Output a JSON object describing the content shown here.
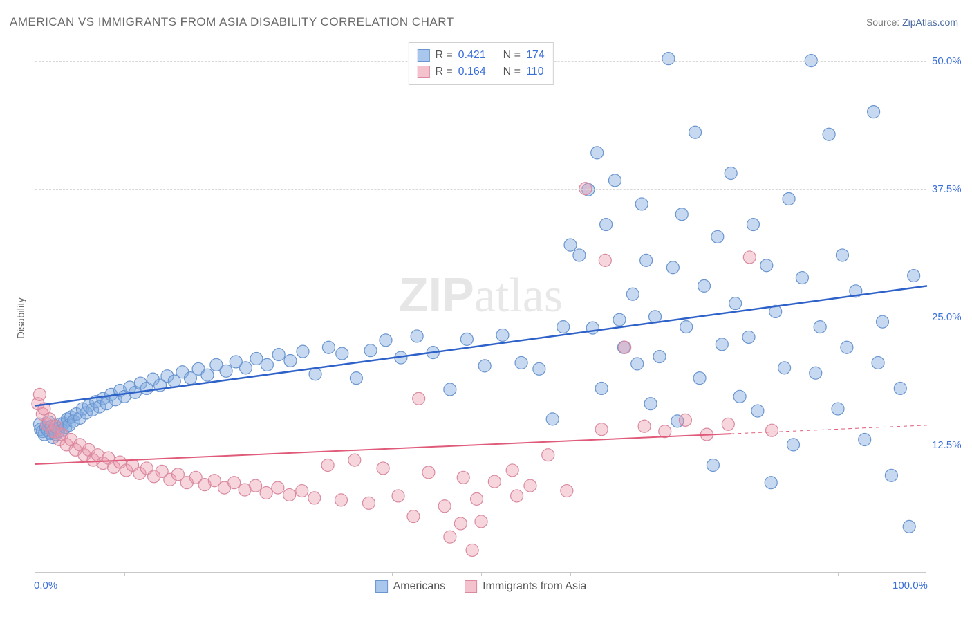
{
  "title": "AMERICAN VS IMMIGRANTS FROM ASIA DISABILITY CORRELATION CHART",
  "source_prefix": "Source: ",
  "source_name": "ZipAtlas.com",
  "ylabel": "Disability",
  "watermark_a": "ZIP",
  "watermark_b": "atlas",
  "chart": {
    "type": "scatter",
    "xlim": [
      0,
      100
    ],
    "ylim": [
      0,
      52
    ],
    "x_tick_labels": {
      "0": "0.0%",
      "100": "100.0%"
    },
    "x_minor_ticks": [
      10,
      20,
      30,
      40,
      50,
      60,
      70,
      80,
      90
    ],
    "y_gridlines": [
      12.5,
      25.0,
      37.5,
      50.0
    ],
    "y_tick_labels": {
      "12.5": "12.5%",
      "25.0": "25.0%",
      "37.5": "37.5%",
      "50.0": "50.0%"
    },
    "background_color": "#ffffff",
    "grid_color": "#d8d8d8",
    "axis_color": "#c8c8c8",
    "series": [
      {
        "name": "Americans",
        "label": "Americans",
        "color_fill": "rgba(128,170,225,0.45)",
        "color_stroke": "#6a95cf",
        "swatch_fill": "#a9c6ec",
        "swatch_stroke": "#6a95cf",
        "marker_radius": 9,
        "R": "0.421",
        "N": "174",
        "trend": {
          "x1": 0,
          "y1": 16.3,
          "x2": 100,
          "y2": 28.0,
          "color": "#2e62c9",
          "width": 2.5,
          "dash_from_x": null
        },
        "points": [
          [
            0.5,
            14.5
          ],
          [
            0.6,
            14.0
          ],
          [
            0.8,
            13.8
          ],
          [
            1.0,
            13.5
          ],
          [
            1.2,
            14.2
          ],
          [
            1.4,
            13.9
          ],
          [
            1.5,
            14.7
          ],
          [
            1.7,
            13.6
          ],
          [
            1.8,
            14.3
          ],
          [
            2.0,
            13.2
          ],
          [
            2.1,
            14.0
          ],
          [
            2.2,
            13.7
          ],
          [
            2.3,
            13.5
          ],
          [
            2.5,
            14.1
          ],
          [
            2.6,
            13.8
          ],
          [
            2.8,
            14.5
          ],
          [
            3.0,
            13.9
          ],
          [
            3.2,
            14.6
          ],
          [
            3.4,
            14.2
          ],
          [
            3.6,
            15.0
          ],
          [
            3.8,
            14.4
          ],
          [
            4.0,
            15.2
          ],
          [
            4.3,
            14.8
          ],
          [
            4.6,
            15.5
          ],
          [
            5.0,
            15.1
          ],
          [
            5.3,
            16.0
          ],
          [
            5.7,
            15.6
          ],
          [
            6.0,
            16.3
          ],
          [
            6.4,
            15.9
          ],
          [
            6.8,
            16.7
          ],
          [
            7.2,
            16.2
          ],
          [
            7.6,
            17.0
          ],
          [
            8.0,
            16.5
          ],
          [
            8.5,
            17.4
          ],
          [
            9.0,
            16.9
          ],
          [
            9.5,
            17.8
          ],
          [
            10.0,
            17.2
          ],
          [
            10.6,
            18.1
          ],
          [
            11.2,
            17.6
          ],
          [
            11.8,
            18.5
          ],
          [
            12.5,
            18.0
          ],
          [
            13.2,
            18.9
          ],
          [
            14.0,
            18.3
          ],
          [
            14.8,
            19.2
          ],
          [
            15.6,
            18.7
          ],
          [
            16.5,
            19.6
          ],
          [
            17.4,
            19.0
          ],
          [
            18.3,
            19.9
          ],
          [
            19.3,
            19.3
          ],
          [
            20.3,
            20.3
          ],
          [
            21.4,
            19.7
          ],
          [
            22.5,
            20.6
          ],
          [
            23.6,
            20.0
          ],
          [
            24.8,
            20.9
          ],
          [
            26.0,
            20.3
          ],
          [
            27.3,
            21.3
          ],
          [
            28.6,
            20.7
          ],
          [
            30.0,
            21.6
          ],
          [
            31.4,
            19.4
          ],
          [
            32.9,
            22.0
          ],
          [
            34.4,
            21.4
          ],
          [
            36.0,
            19.0
          ],
          [
            37.6,
            21.7
          ],
          [
            39.3,
            22.7
          ],
          [
            41.0,
            21.0
          ],
          [
            42.8,
            23.1
          ],
          [
            44.6,
            21.5
          ],
          [
            46.5,
            17.9
          ],
          [
            48.4,
            22.8
          ],
          [
            50.4,
            20.2
          ],
          [
            52.4,
            23.2
          ],
          [
            54.5,
            20.5
          ],
          [
            56.5,
            19.9
          ],
          [
            58.0,
            15.0
          ],
          [
            59.2,
            24.0
          ],
          [
            60.0,
            32.0
          ],
          [
            61.0,
            31.0
          ],
          [
            62.0,
            37.4
          ],
          [
            62.5,
            23.9
          ],
          [
            63.0,
            41.0
          ],
          [
            63.5,
            18.0
          ],
          [
            64.0,
            34.0
          ],
          [
            65.0,
            38.3
          ],
          [
            65.5,
            24.7
          ],
          [
            66.0,
            22.0
          ],
          [
            67.0,
            27.2
          ],
          [
            67.5,
            20.4
          ],
          [
            68.0,
            36.0
          ],
          [
            68.5,
            30.5
          ],
          [
            69.0,
            16.5
          ],
          [
            69.5,
            25.0
          ],
          [
            70.0,
            21.1
          ],
          [
            71.0,
            50.2
          ],
          [
            71.5,
            29.8
          ],
          [
            72.0,
            14.8
          ],
          [
            72.5,
            35.0
          ],
          [
            73.0,
            24.0
          ],
          [
            74.0,
            43.0
          ],
          [
            74.5,
            19.0
          ],
          [
            75.0,
            28.0
          ],
          [
            76.0,
            10.5
          ],
          [
            76.5,
            32.8
          ],
          [
            77.0,
            22.3
          ],
          [
            78.0,
            39.0
          ],
          [
            78.5,
            26.3
          ],
          [
            79.0,
            17.2
          ],
          [
            80.0,
            23.0
          ],
          [
            80.5,
            34.0
          ],
          [
            81.0,
            15.8
          ],
          [
            82.0,
            30.0
          ],
          [
            82.5,
            8.8
          ],
          [
            83.0,
            25.5
          ],
          [
            84.0,
            20.0
          ],
          [
            84.5,
            36.5
          ],
          [
            85.0,
            12.5
          ],
          [
            86.0,
            28.8
          ],
          [
            87.0,
            50.0
          ],
          [
            87.5,
            19.5
          ],
          [
            88.0,
            24.0
          ],
          [
            89.0,
            42.8
          ],
          [
            90.0,
            16.0
          ],
          [
            90.5,
            31.0
          ],
          [
            91.0,
            22.0
          ],
          [
            92.0,
            27.5
          ],
          [
            93.0,
            13.0
          ],
          [
            94.0,
            45.0
          ],
          [
            94.5,
            20.5
          ],
          [
            95.0,
            24.5
          ],
          [
            96.0,
            9.5
          ],
          [
            97.0,
            18.0
          ],
          [
            98.0,
            4.5
          ],
          [
            98.5,
            29.0
          ]
        ]
      },
      {
        "name": "Immigrants from Asia",
        "label": "Immigrants from Asia",
        "color_fill": "rgba(235,150,170,0.40)",
        "color_stroke": "#d98aa0",
        "swatch_fill": "#f3c2cd",
        "swatch_stroke": "#d98aa0",
        "marker_radius": 9,
        "R": "0.164",
        "N": "110",
        "trend": {
          "x1": 0,
          "y1": 10.6,
          "x2": 100,
          "y2": 14.4,
          "color": "#e05a7a",
          "width": 2,
          "dash_from_x": 78
        },
        "points": [
          [
            0.3,
            16.5
          ],
          [
            0.5,
            17.4
          ],
          [
            0.8,
            15.5
          ],
          [
            1.0,
            16.0
          ],
          [
            1.3,
            14.5
          ],
          [
            1.6,
            15.0
          ],
          [
            2.0,
            13.8
          ],
          [
            2.3,
            14.3
          ],
          [
            2.7,
            13.0
          ],
          [
            3.0,
            13.5
          ],
          [
            3.5,
            12.5
          ],
          [
            4.0,
            13.0
          ],
          [
            4.5,
            12.0
          ],
          [
            5.0,
            12.5
          ],
          [
            5.5,
            11.5
          ],
          [
            6.0,
            12.0
          ],
          [
            6.5,
            11.0
          ],
          [
            7.0,
            11.5
          ],
          [
            7.6,
            10.7
          ],
          [
            8.2,
            11.2
          ],
          [
            8.8,
            10.3
          ],
          [
            9.5,
            10.8
          ],
          [
            10.2,
            10.0
          ],
          [
            10.9,
            10.5
          ],
          [
            11.7,
            9.7
          ],
          [
            12.5,
            10.2
          ],
          [
            13.3,
            9.4
          ],
          [
            14.2,
            9.9
          ],
          [
            15.1,
            9.1
          ],
          [
            16.0,
            9.6
          ],
          [
            17.0,
            8.8
          ],
          [
            18.0,
            9.3
          ],
          [
            19.0,
            8.6
          ],
          [
            20.1,
            9.0
          ],
          [
            21.2,
            8.3
          ],
          [
            22.3,
            8.8
          ],
          [
            23.5,
            8.1
          ],
          [
            24.7,
            8.5
          ],
          [
            25.9,
            7.8
          ],
          [
            27.2,
            8.3
          ],
          [
            28.5,
            7.6
          ],
          [
            29.9,
            8.0
          ],
          [
            31.3,
            7.3
          ],
          [
            32.8,
            10.5
          ],
          [
            34.3,
            7.1
          ],
          [
            35.8,
            11.0
          ],
          [
            37.4,
            6.8
          ],
          [
            39.0,
            10.2
          ],
          [
            40.7,
            7.5
          ],
          [
            42.4,
            5.5
          ],
          [
            43.0,
            17.0
          ],
          [
            44.1,
            9.8
          ],
          [
            45.9,
            6.5
          ],
          [
            46.5,
            3.5
          ],
          [
            47.7,
            4.8
          ],
          [
            48.0,
            9.3
          ],
          [
            49.0,
            2.2
          ],
          [
            49.5,
            7.2
          ],
          [
            50.0,
            5.0
          ],
          [
            51.5,
            8.9
          ],
          [
            53.5,
            10.0
          ],
          [
            54.0,
            7.5
          ],
          [
            55.5,
            8.5
          ],
          [
            57.5,
            11.5
          ],
          [
            59.6,
            8.0
          ],
          [
            61.7,
            37.5
          ],
          [
            63.5,
            14.0
          ],
          [
            63.9,
            30.5
          ],
          [
            66.1,
            22.0
          ],
          [
            68.3,
            14.3
          ],
          [
            70.6,
            13.8
          ],
          [
            72.9,
            14.9
          ],
          [
            75.3,
            13.5
          ],
          [
            77.7,
            14.5
          ],
          [
            80.1,
            30.8
          ],
          [
            82.6,
            13.9
          ]
        ]
      }
    ]
  },
  "legend_bottom_labels": [
    "Americans",
    "Immigrants from Asia"
  ],
  "legend_top_labels": {
    "R": "R =",
    "N": "N ="
  }
}
